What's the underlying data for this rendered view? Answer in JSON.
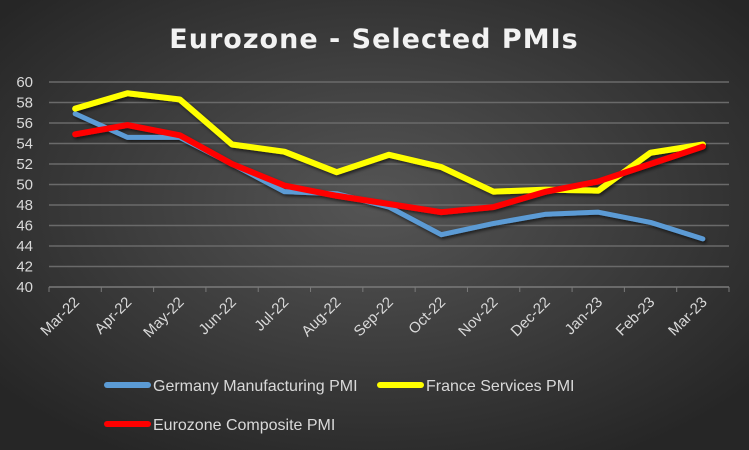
{
  "chart_data": {
    "type": "line",
    "title": "Eurozone - Selected PMIs",
    "xlabel": "",
    "ylabel": "",
    "ylim": [
      40,
      60
    ],
    "yticks": [
      "40",
      "42",
      "44",
      "46",
      "48",
      "50",
      "52",
      "54",
      "56",
      "58",
      "60"
    ],
    "grid": true,
    "legend_position": "bottom",
    "categories": [
      "Mar-22",
      "Apr-22",
      "May-22",
      "Jun-22",
      "Jul-22",
      "Aug-22",
      "Sep-22",
      "Oct-22",
      "Nov-22",
      "Dec-22",
      "Jan-23",
      "Feb-23",
      "Mar-23"
    ],
    "series": [
      {
        "name": "Germany Manufacturing PMI",
        "color": "#5b9bd5",
        "values": [
          56.9,
          54.6,
          54.6,
          52.0,
          49.3,
          49.1,
          47.8,
          45.1,
          46.2,
          47.1,
          47.3,
          46.3,
          44.7
        ]
      },
      {
        "name": "France Services PMI",
        "color": "#ffff00",
        "values": [
          57.4,
          58.9,
          58.3,
          53.9,
          53.2,
          51.2,
          52.9,
          51.7,
          49.3,
          49.5,
          49.4,
          53.1,
          53.9
        ]
      },
      {
        "name": "Eurozone Composite PMI",
        "color": "#ff0000",
        "values": [
          54.9,
          55.8,
          54.8,
          52.0,
          49.9,
          48.9,
          48.1,
          47.3,
          47.8,
          49.3,
          50.3,
          52.0,
          53.7
        ]
      }
    ]
  }
}
